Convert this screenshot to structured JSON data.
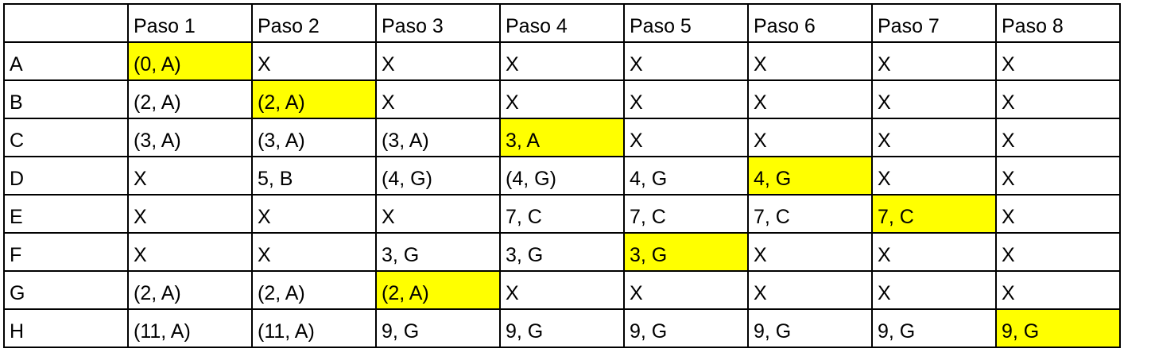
{
  "header": [
    "",
    "Paso 1",
    "Paso 2",
    "Paso 3",
    "Paso 4",
    "Paso 5",
    "Paso 6",
    "Paso 7",
    "Paso 8"
  ],
  "highlight_color": "#ffff00",
  "rows": [
    {
      "label": "A",
      "highlight_step": 1,
      "cells": [
        "(0, A)",
        "X",
        "X",
        "X",
        "X",
        "X",
        "X",
        "X"
      ]
    },
    {
      "label": "B",
      "highlight_step": 2,
      "cells": [
        "(2, A)",
        "(2, A)",
        "X",
        "X",
        "X",
        "X",
        "X",
        "X"
      ]
    },
    {
      "label": "C",
      "highlight_step": 4,
      "cells": [
        "(3, A)",
        "(3, A)",
        "(3, A)",
        "3, A",
        "X",
        "X",
        "X",
        "X"
      ]
    },
    {
      "label": "D",
      "highlight_step": 6,
      "cells": [
        "X",
        "5, B",
        "(4, G)",
        "(4, G)",
        "4, G",
        "4, G",
        "X",
        "X"
      ]
    },
    {
      "label": "E",
      "highlight_step": 7,
      "cells": [
        "X",
        "X",
        "X",
        "7, C",
        "7, C",
        "7, C",
        "7, C",
        "X"
      ]
    },
    {
      "label": "F",
      "highlight_step": 5,
      "cells": [
        "X",
        "X",
        "3, G",
        "3, G",
        "3, G",
        "X",
        "X",
        "X"
      ]
    },
    {
      "label": "G",
      "highlight_step": 3,
      "cells": [
        "(2, A)",
        "(2, A)",
        "(2, A)",
        "X",
        "X",
        "X",
        "X",
        "X"
      ]
    },
    {
      "label": "H",
      "highlight_step": 8,
      "cells": [
        "(11, A)",
        "(11, A)",
        "9, G",
        "9, G",
        "9, G",
        "9, G",
        "9, G",
        "9, G"
      ]
    }
  ]
}
